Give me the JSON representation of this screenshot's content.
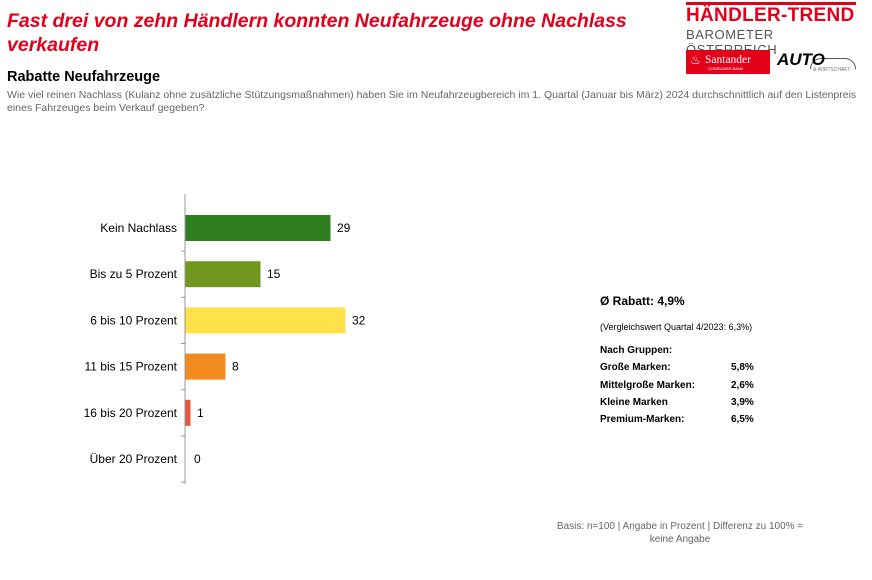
{
  "header": {
    "headline": "Fast drei von zehn Händlern konnten Neufahrzeuge ohne Nachlass verkaufen",
    "subtitle": "Rabatte Neufahrzeuge",
    "question": "Wie viel reinen Nachlass (Kulanz ohne zusätzliche Stützungsmaßnahmen) haben Sie im Neufahrzeugbereich im 1. Quartal (Januar bis März) 2024 durchschnittlich auf den Listenpreis eines Fahrzeuges beim Verkauf gegeben?"
  },
  "logo": {
    "title": "HÄNDLER-TREND",
    "subtitle": "BAROMETER ÖSTERREICH",
    "partner1": "Santander",
    "partner1_sub": "CONSUMER BANK",
    "partner2": "AUTO",
    "partner2_sub": "& WIRTSCHAFT"
  },
  "chart_data": {
    "type": "bar",
    "orientation": "horizontal",
    "categories": [
      "Kein Nachlass",
      "Bis zu 5 Prozent",
      "6 bis 10 Prozent",
      "11 bis 15 Prozent",
      "16 bis 20 Prozent",
      "Über 20 Prozent"
    ],
    "values": [
      29,
      15,
      32,
      8,
      1,
      0
    ],
    "colors": [
      "#2e7d1e",
      "#72971f",
      "#ffe14a",
      "#f28a1e",
      "#e8553d",
      "#cccccc"
    ],
    "xlim": [
      0,
      32
    ],
    "grid": false,
    "data_labels": true
  },
  "stats": {
    "average": "Ø Rabatt: 4,9%",
    "comparison": "(Vergleichswert Quartal 4/2023: 6,3%)",
    "groups_title": "Nach Gruppen:",
    "groups": [
      {
        "label": "Große Marken:",
        "value": "5,8%"
      },
      {
        "label": "Mittelgroße Marken:",
        "value": "2,6%"
      },
      {
        "label": "Kleine Marken",
        "value": "3,9%"
      },
      {
        "label": "Premium-Marken:",
        "value": "6,5%"
      }
    ]
  },
  "footnote": {
    "line1": "Basis: n=100 | Angabe in Prozent | Differenz zu 100% =",
    "line2": "keine Angabe"
  }
}
